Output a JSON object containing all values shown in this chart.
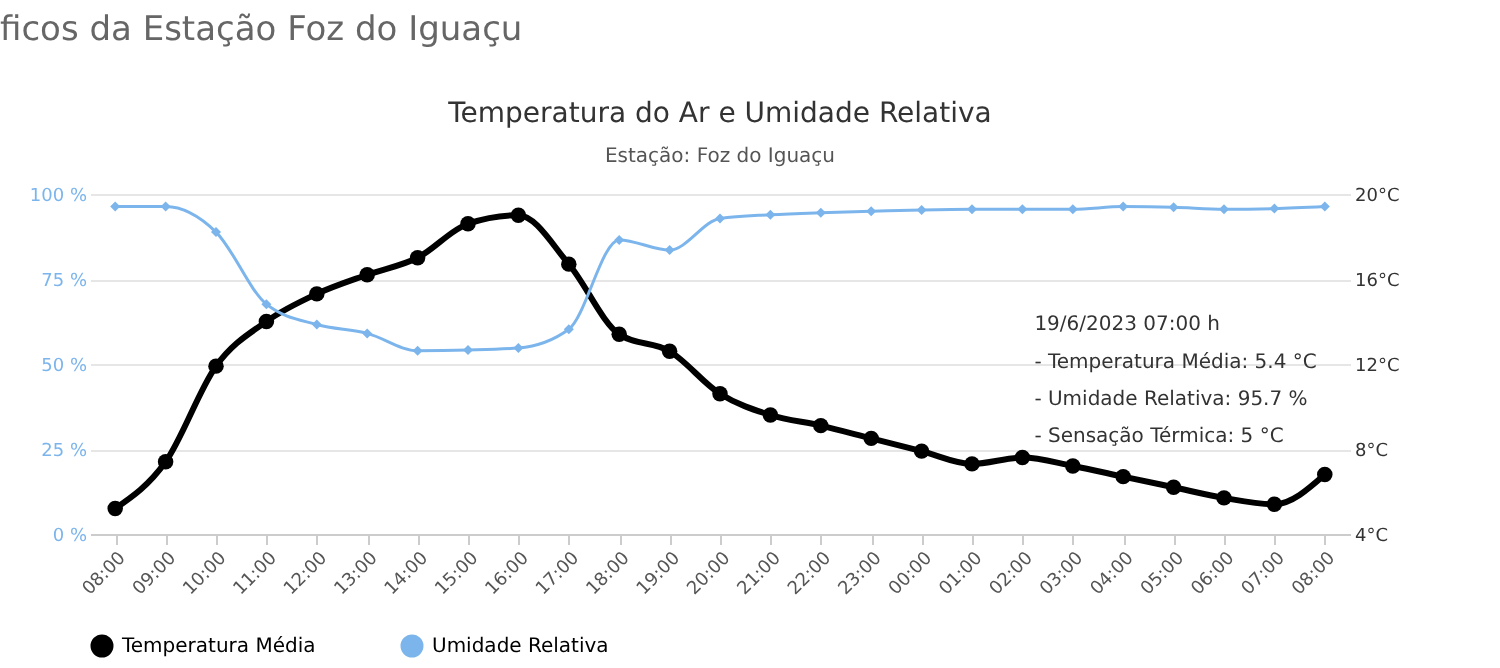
{
  "chart_data": {
    "type": "line",
    "title": "Temperatura do Ar e Umidade Relativa",
    "subtitle": "Estação: Foz do Iguaçu",
    "annotations": [
      "ficos da Estação Foz do Iguaçu",
      "19/6/2023 07:00 h",
      "- Temperatura Média: 5.4 °C",
      "- Umidade Relativa: 95.7 %",
      "- Sensação Térmica: 5 °C"
    ],
    "categories": [
      "08:00",
      "09:00",
      "10:00",
      "11:00",
      "12:00",
      "13:00",
      "14:00",
      "15:00",
      "16:00",
      "17:00",
      "18:00",
      "19:00",
      "20:00",
      "21:00",
      "22:00",
      "23:00",
      "00:00",
      "01:00",
      "02:00",
      "03:00",
      "04:00",
      "05:00",
      "06:00",
      "07:00",
      "08:00"
    ],
    "series": [
      {
        "name": "Temperatura Média",
        "color": "#000000",
        "axis": "y2",
        "marker": "circle",
        "values": [
          5.2,
          7.4,
          11.9,
          14.0,
          15.3,
          16.2,
          17.0,
          18.6,
          19.0,
          16.7,
          13.4,
          12.6,
          10.6,
          9.6,
          9.1,
          8.5,
          7.9,
          7.3,
          7.6,
          7.2,
          6.7,
          6.2,
          5.7,
          5.4,
          6.8
        ]
      },
      {
        "name": "Umidade Relativa",
        "color": "#7cb5ec",
        "axis": "y",
        "marker": "diamond",
        "values": [
          96.3,
          96.3,
          88.8,
          67.6,
          61.6,
          59.0,
          53.9,
          54.1,
          54.7,
          60.2,
          86.5,
          83.5,
          92.8,
          93.9,
          94.5,
          94.9,
          95.3,
          95.5,
          95.5,
          95.5,
          96.3,
          96.1,
          95.5,
          95.7,
          96.3
        ]
      }
    ],
    "ylim": [
      0,
      100
    ],
    "yticks": [
      {
        "value": 0,
        "label": "0 %"
      },
      {
        "value": 25,
        "label": "25 %"
      },
      {
        "value": 50,
        "label": "50 %"
      },
      {
        "value": 75,
        "label": "75 %"
      },
      {
        "value": 100,
        "label": "100 %"
      }
    ],
    "y2lim": [
      4,
      20
    ],
    "y2ticks": [
      {
        "value": 4,
        "label": "4°C"
      },
      {
        "value": 8,
        "label": "8°C"
      },
      {
        "value": 12,
        "label": "12°C"
      },
      {
        "value": 16,
        "label": "16°C"
      },
      {
        "value": 20,
        "label": "20°C"
      }
    ],
    "grid": "y",
    "legend": "bottom",
    "line_style": "solid"
  }
}
